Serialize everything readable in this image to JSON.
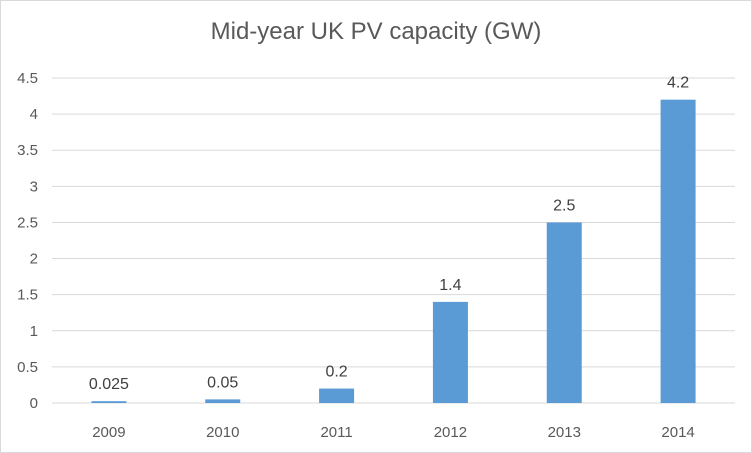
{
  "chart_data": {
    "type": "bar",
    "title": "Mid-year UK PV capacity (GW)",
    "categories": [
      "2009",
      "2010",
      "2011",
      "2012",
      "2013",
      "2014"
    ],
    "values": [
      0.025,
      0.05,
      0.2,
      1.4,
      2.5,
      4.2
    ],
    "data_labels": [
      "0.025",
      "0.05",
      "0.2",
      "1.4",
      "2.5",
      "4.2"
    ],
    "y_ticks": [
      "0",
      "0.5",
      "1",
      "1.5",
      "2",
      "2.5",
      "3",
      "3.5",
      "4",
      "4.5"
    ],
    "ylim": [
      0,
      4.5
    ],
    "xlabel": "",
    "ylabel": "",
    "grid": true,
    "bar_color": "#5b9bd5"
  }
}
